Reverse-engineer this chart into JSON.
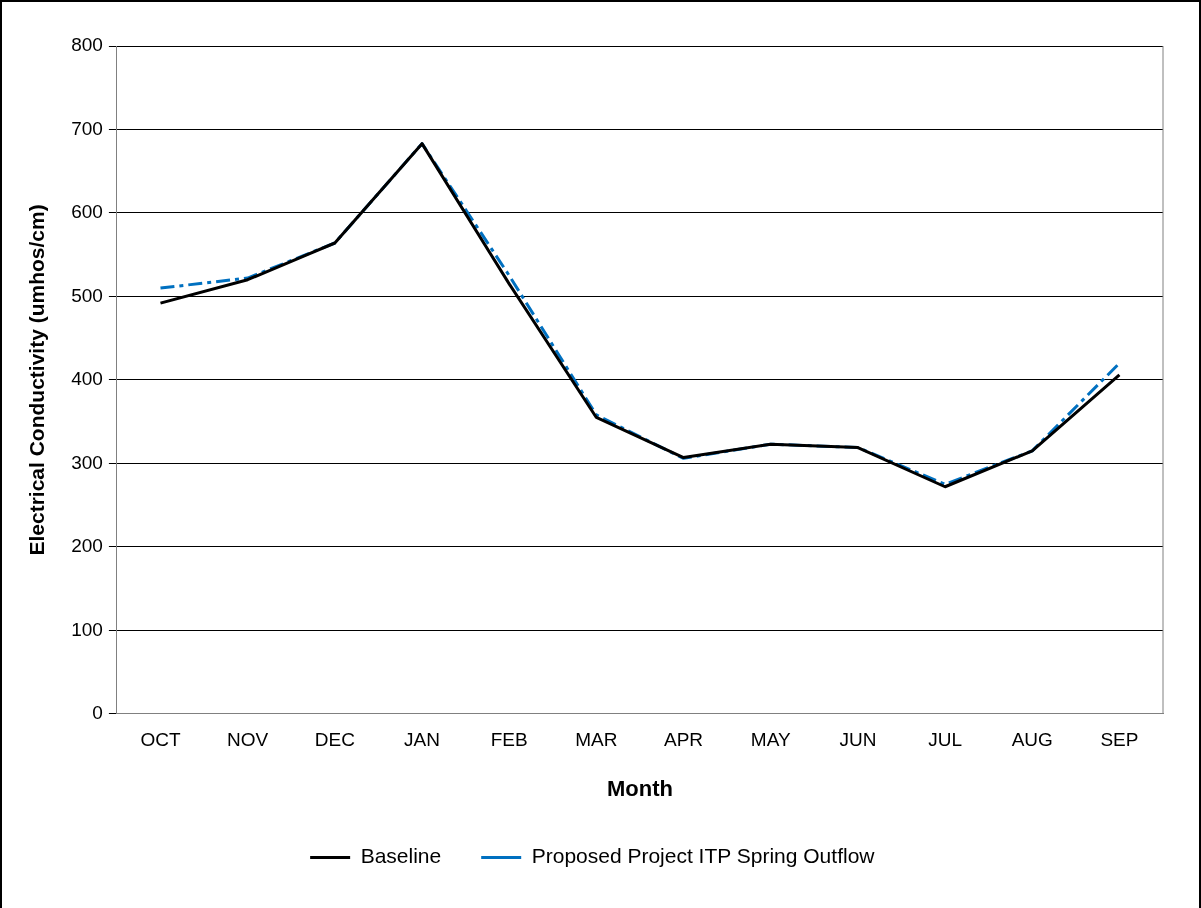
{
  "chart_data": {
    "type": "line",
    "xlabel": "Month",
    "ylabel": "Electrical Conductivity (umhos/cm)",
    "categories": [
      "OCT",
      "NOV",
      "DEC",
      "JAN",
      "FEB",
      "MAR",
      "APR",
      "MAY",
      "JUN",
      "JUL",
      "AUG",
      "SEP"
    ],
    "series": [
      {
        "name": "Baseline",
        "color": "#000000",
        "line_style": "solid",
        "values": [
          492,
          520,
          564,
          683,
          515,
          355,
          307,
          323,
          319,
          272,
          315,
          406
        ]
      },
      {
        "name": "Proposed Project ITP Spring Outflow",
        "color": "#0070c0",
        "line_style": "dashed",
        "values": [
          510,
          522,
          564,
          683,
          525,
          358,
          306,
          323,
          319,
          275,
          315,
          420
        ]
      }
    ],
    "ylim": [
      0,
      800
    ],
    "yticks": [
      0,
      100,
      200,
      300,
      400,
      500,
      600,
      700,
      800
    ],
    "grid": "y",
    "legend": "bottom",
    "marker": "none"
  }
}
